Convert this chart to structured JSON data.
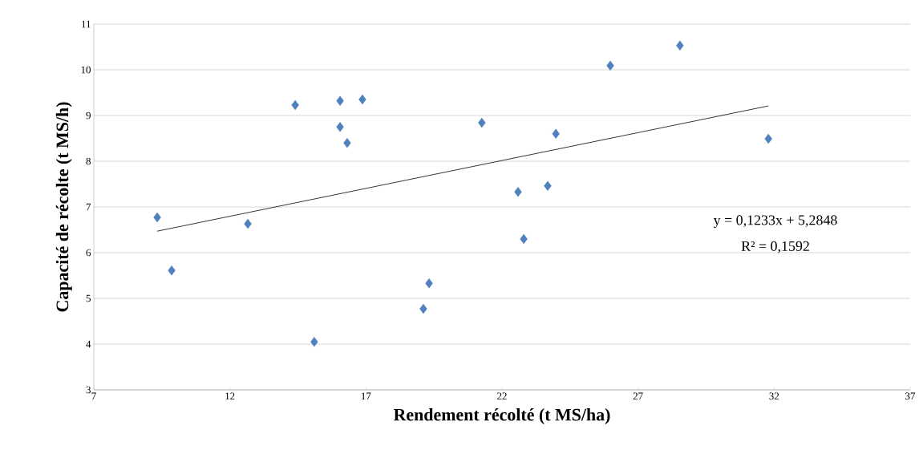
{
  "chart_data": {
    "type": "scatter",
    "xlabel": "Rendement récolté (t MS/ha)",
    "ylabel": "Capacité de récolte (t MS/h)",
    "x": [
      9.33,
      9.86,
      12.66,
      14.4,
      15.1,
      16.05,
      16.05,
      16.31,
      16.87,
      19.11,
      19.32,
      21.26,
      22.59,
      22.8,
      23.68,
      23.98,
      25.98,
      28.54,
      31.79
    ],
    "series": [
      {
        "color": "#4f81bd",
        "values": [
          6.77,
          5.61,
          6.63,
          9.23,
          4.05,
          9.32,
          8.75,
          8.4,
          9.35,
          4.77,
          5.33,
          8.84,
          7.33,
          6.3,
          7.46,
          8.6,
          10.09,
          10.53,
          8.49
        ]
      },
      {
        "type": "line",
        "color": "#000000",
        "marker": "none",
        "x": [
          9.33,
          31.79
        ],
        "values": [
          6.47,
          9.21
        ]
      }
    ],
    "annotations": [
      "y = 0,1233x + 5,2848",
      "R² = 0,1592"
    ],
    "xlim": [
      7,
      37
    ],
    "ylim": [
      3,
      11
    ],
    "xticks": [
      7,
      12,
      17,
      22,
      27,
      32,
      37
    ],
    "yticks": [
      3,
      4,
      5,
      6,
      7,
      8,
      9,
      10,
      11
    ],
    "grid": "y",
    "marker": "diamond"
  }
}
